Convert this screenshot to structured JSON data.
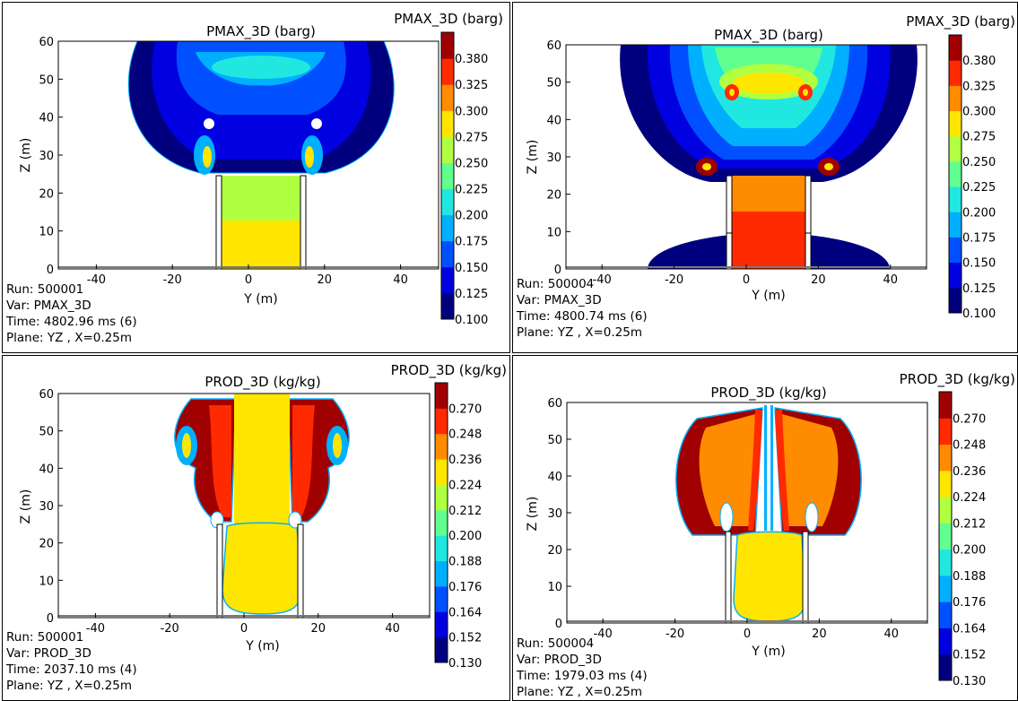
{
  "chart_data": [
    {
      "type": "heatmap",
      "title": "PMAX_3D (barg)",
      "colorbar_title": "PMAX_3D (barg)",
      "xlabel": "Y (m)",
      "ylabel": "Z (m)",
      "xlim": [
        -50,
        50
      ],
      "ylim": [
        0,
        60
      ],
      "x_ticks": [
        "-40",
        "-20",
        "0",
        "20",
        "40"
      ],
      "y_ticks": [
        "0",
        "10",
        "20",
        "30",
        "40",
        "50",
        "60"
      ],
      "colorbar_levels": [
        "0.100",
        "0.125",
        "0.150",
        "0.175",
        "0.200",
        "0.225",
        "0.250",
        "0.275",
        "0.300",
        "0.325",
        "0.380"
      ],
      "colorbar_colors": [
        "#00007f",
        "#0000e0",
        "#0050ff",
        "#00b0ff",
        "#20e8e0",
        "#60ff90",
        "#b0ff40",
        "#ffe600",
        "#ff8c00",
        "#ff2a00",
        "#a00000"
      ],
      "info": {
        "run": "Run: 500001",
        "var": "Var: PMAX_3D",
        "time": "Time: 4802.96 ms (6)",
        "plane": "Plane: YZ , X=0.25m"
      }
    },
    {
      "type": "heatmap",
      "title": "PMAX_3D (barg)",
      "colorbar_title": "PMAX_3D (barg)",
      "xlabel": "Y (m)",
      "ylabel": "Z (m)",
      "xlim": [
        -50,
        50
      ],
      "ylim": [
        0,
        60
      ],
      "x_ticks": [
        "-40",
        "-20",
        "0",
        "20",
        "40"
      ],
      "y_ticks": [
        "0",
        "10",
        "20",
        "30",
        "40",
        "50",
        "60"
      ],
      "colorbar_levels": [
        "0.100",
        "0.125",
        "0.150",
        "0.175",
        "0.200",
        "0.225",
        "0.250",
        "0.275",
        "0.300",
        "0.325",
        "0.380"
      ],
      "colorbar_colors": [
        "#00007f",
        "#0000e0",
        "#0050ff",
        "#00b0ff",
        "#20e8e0",
        "#60ff90",
        "#b0ff40",
        "#ffe600",
        "#ff8c00",
        "#ff2a00",
        "#a00000"
      ],
      "info": {
        "run": "Run: 500004",
        "var": "Var: PMAX_3D",
        "time": "Time: 4800.74 ms (6)",
        "plane": "Plane: YZ , X=0.25m"
      }
    },
    {
      "type": "heatmap",
      "title": "PROD_3D (kg/kg)",
      "colorbar_title": "PROD_3D (kg/kg)",
      "xlabel": "Y (m)",
      "ylabel": "Z (m)",
      "xlim": [
        -50,
        50
      ],
      "ylim": [
        0,
        60
      ],
      "x_ticks": [
        "-40",
        "-20",
        "0",
        "20",
        "40"
      ],
      "y_ticks": [
        "0",
        "10",
        "20",
        "30",
        "40",
        "50",
        "60"
      ],
      "colorbar_levels": [
        "0.130",
        "0.152",
        "0.164",
        "0.176",
        "0.188",
        "0.200",
        "0.212",
        "0.224",
        "0.236",
        "0.248",
        "0.270"
      ],
      "colorbar_colors": [
        "#00007f",
        "#0000e0",
        "#0050ff",
        "#00b0ff",
        "#20e8e0",
        "#60ff90",
        "#b0ff40",
        "#ffe600",
        "#ff8c00",
        "#ff2a00",
        "#a00000"
      ],
      "info": {
        "run": "Run: 500001",
        "var": "Var: PROD_3D",
        "time": "Time: 2037.10 ms (4)",
        "plane": "Plane: YZ , X=0.25m"
      }
    },
    {
      "type": "heatmap",
      "title": "PROD_3D (kg/kg)",
      "colorbar_title": "PROD_3D (kg/kg)",
      "xlabel": "Y (m)",
      "ylabel": "Z (m)",
      "xlim": [
        -50,
        50
      ],
      "ylim": [
        0,
        60
      ],
      "x_ticks": [
        "-40",
        "-20",
        "0",
        "20",
        "40"
      ],
      "y_ticks": [
        "0",
        "10",
        "20",
        "30",
        "40",
        "50",
        "60"
      ],
      "colorbar_levels": [
        "0.130",
        "0.152",
        "0.164",
        "0.176",
        "0.188",
        "0.200",
        "0.212",
        "0.224",
        "0.236",
        "0.248",
        "0.270"
      ],
      "colorbar_colors": [
        "#00007f",
        "#0000e0",
        "#0050ff",
        "#00b0ff",
        "#20e8e0",
        "#60ff90",
        "#b0ff40",
        "#ffe600",
        "#ff8c00",
        "#ff2a00",
        "#a00000"
      ],
      "info": {
        "run": "Run: 500004",
        "var": "Var: PROD_3D",
        "time": "Time: 1979.03 ms (4)",
        "plane": "Plane: YZ , X=0.25m"
      }
    }
  ]
}
